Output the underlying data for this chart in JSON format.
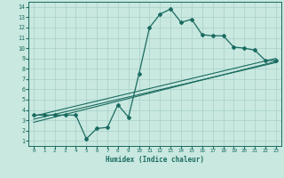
{
  "xlabel": "Humidex (Indice chaleur)",
  "bg_color": "#c8e8e0",
  "grid_color": "#a8d0c8",
  "line_color": "#1a6b60",
  "xlim": [
    -0.5,
    23.5
  ],
  "ylim": [
    0.5,
    14.5
  ],
  "xticks": [
    0,
    1,
    2,
    3,
    4,
    5,
    6,
    7,
    8,
    9,
    10,
    11,
    12,
    13,
    14,
    15,
    16,
    17,
    18,
    19,
    20,
    21,
    22,
    23
  ],
  "yticks": [
    1,
    2,
    3,
    4,
    5,
    6,
    7,
    8,
    9,
    10,
    11,
    12,
    13,
    14
  ],
  "jagged_x": [
    0,
    1,
    2,
    3,
    4,
    5,
    6,
    7,
    8,
    9,
    10,
    11,
    12,
    13,
    14,
    15,
    16,
    17,
    18,
    19,
    20,
    21,
    22,
    23
  ],
  "jagged_y": [
    3.5,
    3.5,
    3.5,
    3.5,
    3.5,
    1.2,
    2.2,
    2.3,
    4.5,
    3.3,
    7.5,
    12.0,
    13.3,
    13.8,
    12.5,
    12.8,
    11.3,
    11.2,
    11.2,
    10.1,
    10.0,
    9.8,
    8.8,
    8.8
  ],
  "line1_x": [
    0,
    23
  ],
  "line1_y": [
    3.4,
    9.0
  ],
  "line2_x": [
    0,
    23
  ],
  "line2_y": [
    3.1,
    8.6
  ],
  "line3_x": [
    0,
    23
  ],
  "line3_y": [
    2.8,
    8.7
  ]
}
